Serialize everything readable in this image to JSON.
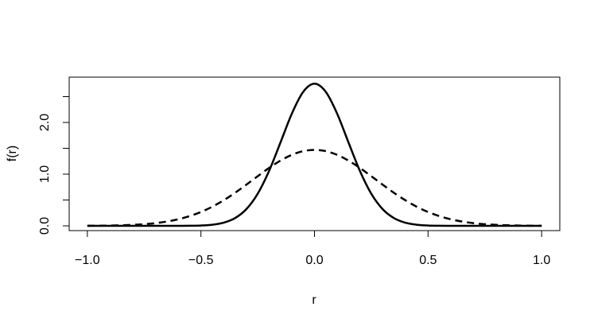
{
  "chart_data": {
    "type": "line",
    "x_label": "r",
    "y_label": "f(r)",
    "x": [
      -1.0,
      -0.95,
      -0.9,
      -0.85,
      -0.8,
      -0.75,
      -0.7,
      -0.65,
      -0.6,
      -0.55,
      -0.5,
      -0.45,
      -0.4,
      -0.35,
      -0.3,
      -0.25,
      -0.2,
      -0.15,
      -0.1,
      -0.05,
      0.0,
      0.05,
      0.1,
      0.15,
      0.2,
      0.25,
      0.3,
      0.35,
      0.4,
      0.45,
      0.5,
      0.55,
      0.6,
      0.65,
      0.7,
      0.75,
      0.8,
      0.85,
      0.9,
      0.95,
      1.0
    ],
    "series": [
      {
        "name": "solid",
        "color": "#000000",
        "dash": false,
        "values": [
          0,
          0,
          0,
          0,
          0,
          0,
          0,
          0,
          0.001,
          0.002,
          0.007,
          0.022,
          0.061,
          0.149,
          0.323,
          0.622,
          1.062,
          1.61,
          2.168,
          2.591,
          2.75,
          2.591,
          2.168,
          1.61,
          1.062,
          0.622,
          0.323,
          0.149,
          0.061,
          0.022,
          0.007,
          0.002,
          0.001,
          0,
          0,
          0,
          0,
          0,
          0,
          0,
          0
        ]
      },
      {
        "name": "dashed",
        "color": "#000000",
        "dash": true,
        "values": [
          0.002,
          0.003,
          0.006,
          0.011,
          0.019,
          0.032,
          0.052,
          0.083,
          0.127,
          0.188,
          0.268,
          0.37,
          0.495,
          0.638,
          0.797,
          0.96,
          1.12,
          1.261,
          1.373,
          1.445,
          1.47,
          1.445,
          1.373,
          1.261,
          1.12,
          0.96,
          0.797,
          0.638,
          0.495,
          0.37,
          0.268,
          0.188,
          0.127,
          0.083,
          0.052,
          0.032,
          0.019,
          0.011,
          0.006,
          0.003,
          0.002
        ]
      }
    ],
    "xlim": [
      -1.08,
      1.08
    ],
    "xticks": [
      {
        "value": -1.0,
        "label": "−1.0"
      },
      {
        "value": -0.5,
        "label": "−0.5"
      },
      {
        "value": 0.0,
        "label": "0.0"
      },
      {
        "value": 0.5,
        "label": "0.5"
      },
      {
        "value": 1.0,
        "label": "1.0"
      }
    ],
    "ylim": [
      -0.092,
      2.877
    ],
    "yticks": [
      {
        "value": 0.0,
        "label": "0.0"
      },
      {
        "value": 0.5,
        "label": null
      },
      {
        "value": 1.0,
        "label": "1.0"
      },
      {
        "value": 1.5,
        "label": null
      },
      {
        "value": 2.0,
        "label": "2.0"
      },
      {
        "value": 2.5,
        "label": null
      }
    ],
    "grid": false
  }
}
